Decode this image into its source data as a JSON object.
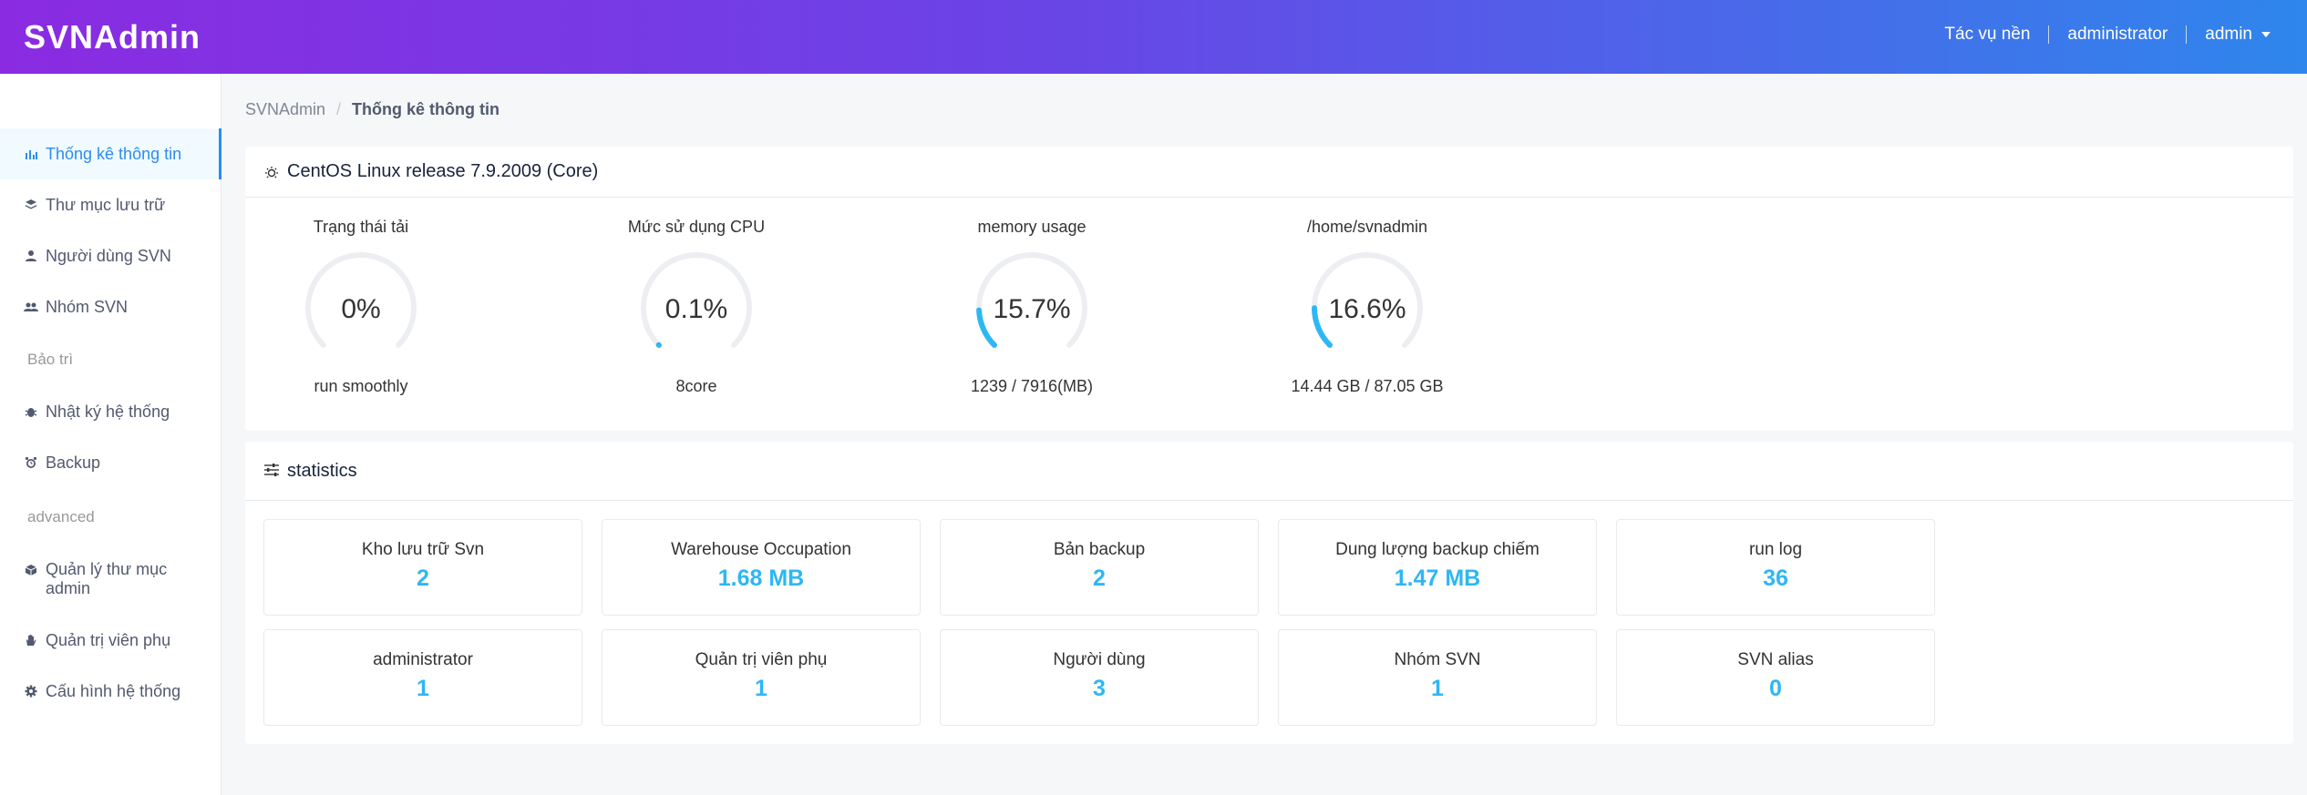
{
  "header": {
    "logo": "SVNAdmin",
    "items": [
      "Tác vụ nền",
      "administrator",
      "admin"
    ]
  },
  "sidebar": {
    "items": [
      {
        "label": "Thống kê thông tin",
        "icon": "bar-chart-icon",
        "active": true
      },
      {
        "label": "Thư mục lưu trữ",
        "icon": "layers-icon"
      },
      {
        "label": "Người dùng SVN",
        "icon": "person-icon"
      },
      {
        "label": "Nhóm SVN",
        "icon": "people-icon"
      }
    ],
    "group_maint": "Bảo trì",
    "items_maint": [
      {
        "label": "Nhật ký hệ thống",
        "icon": "bug-icon"
      },
      {
        "label": "Backup",
        "icon": "alarm-icon"
      }
    ],
    "group_adv": "advanced",
    "items_adv": [
      {
        "label": "Quản lý thư mục admin",
        "icon": "cube-icon"
      },
      {
        "label": "Quản trị viên phụ",
        "icon": "hand-icon"
      },
      {
        "label": "Cấu hình hệ thống",
        "icon": "gear-icon"
      }
    ]
  },
  "breadcrumb": {
    "root": "SVNAdmin",
    "sep": "/",
    "current": "Thống kê thông tin"
  },
  "system_card": {
    "title": "CentOS Linux release 7.9.2009 (Core)",
    "gauges": [
      {
        "label": "Trạng thái tải",
        "value": "0%",
        "percent": 0,
        "footer": "run smoothly"
      },
      {
        "label": "Mức sử dụng CPU",
        "value": "0.1%",
        "percent": 0.1,
        "footer": "8core"
      },
      {
        "label": "memory usage",
        "value": "15.7%",
        "percent": 15.7,
        "footer": "1239 / 7916(MB)"
      },
      {
        "label": "/home/svnadmin",
        "value": "16.6%",
        "percent": 16.6,
        "footer": "14.44 GB / 87.05 GB"
      }
    ],
    "colors": {
      "track": "#eceef1",
      "fill": "#2db7f5"
    }
  },
  "stats_card": {
    "title": "statistics",
    "rows": [
      [
        {
          "label": "Kho lưu trữ Svn",
          "value": "2"
        },
        {
          "label": "Warehouse Occupation",
          "value": "1.68 MB"
        },
        {
          "label": "Bản backup",
          "value": "2"
        },
        {
          "label": "Dung lượng backup chiếm",
          "value": "1.47 MB"
        },
        {
          "label": "run log",
          "value": "36"
        }
      ],
      [
        {
          "label": "administrator",
          "value": "1"
        },
        {
          "label": "Quản trị viên phụ",
          "value": "1"
        },
        {
          "label": "Người dùng",
          "value": "3"
        },
        {
          "label": "Nhóm SVN",
          "value": "1"
        },
        {
          "label": "SVN alias",
          "value": "0"
        }
      ]
    ]
  }
}
